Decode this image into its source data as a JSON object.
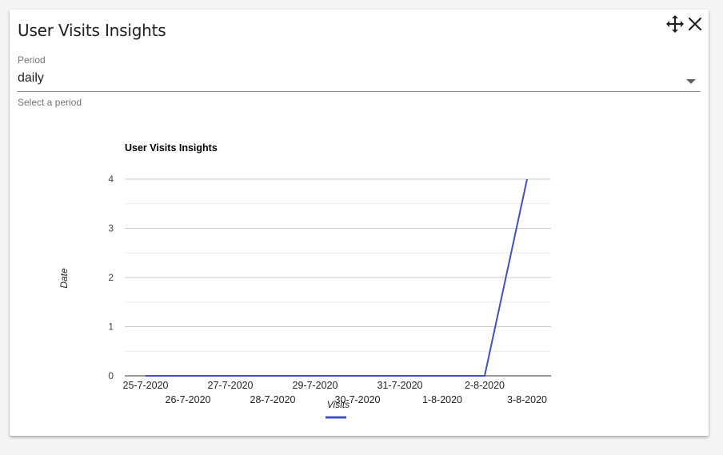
{
  "widget": {
    "title": "User Visits Insights",
    "move_icon": "move-arrows-icon",
    "close_icon": "close-icon"
  },
  "period": {
    "label": "Period",
    "value": "daily",
    "helper": "Select a period"
  },
  "chart_data": {
    "type": "line",
    "title": "User Visits Insights",
    "xlabel": "Visits",
    "ylabel": "Date",
    "categories": [
      "25-7-2020",
      "26-7-2020",
      "27-7-2020",
      "28-7-2020",
      "29-7-2020",
      "30-7-2020",
      "31-7-2020",
      "1-8-2020",
      "2-8-2020",
      "3-8-2020"
    ],
    "series": [
      {
        "values": [
          0,
          0,
          0,
          0,
          0,
          0,
          0,
          0,
          0,
          4
        ],
        "color": "#3f51c5"
      }
    ],
    "ylim": [
      0,
      4
    ],
    "yticks": [
      0,
      1,
      2,
      3,
      4
    ],
    "grid": true,
    "legend": "bottom"
  }
}
